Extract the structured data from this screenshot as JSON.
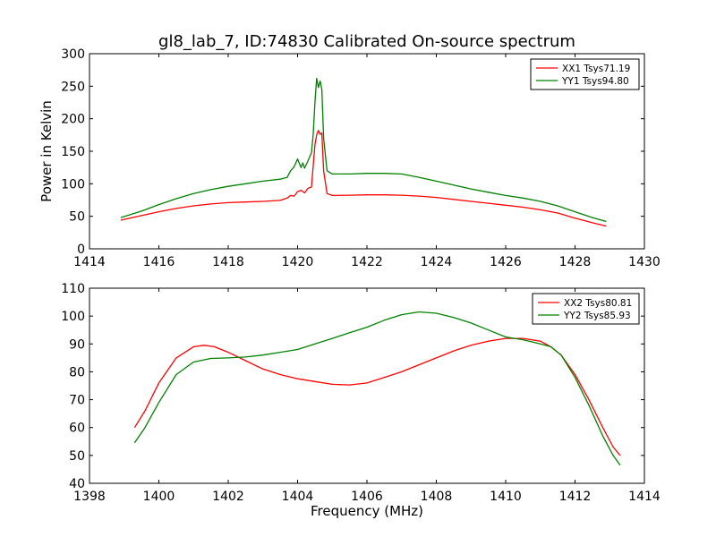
{
  "figure": {
    "title": "gl8_lab_7, ID:74830 Calibrated On-source spectrum"
  },
  "chart_data": [
    {
      "type": "line",
      "title": "gl8_lab_7, ID:74830 Calibrated On-source spectrum",
      "xlabel": "",
      "ylabel": "Power in Kelvin",
      "xlim": [
        1414,
        1430
      ],
      "ylim": [
        0,
        300
      ],
      "xticks": [
        1414,
        1416,
        1418,
        1420,
        1422,
        1424,
        1426,
        1428,
        1430
      ],
      "yticks": [
        0,
        50,
        100,
        150,
        200,
        250,
        300
      ],
      "grid": false,
      "legend_position": "top-right",
      "series": [
        {
          "name": "XX1 Tsys71.19",
          "color": "#ff0000",
          "points": [
            [
              1414.9,
              44
            ],
            [
              1415.5,
              51
            ],
            [
              1416,
              57
            ],
            [
              1416.5,
              62
            ],
            [
              1417,
              66
            ],
            [
              1417.5,
              69
            ],
            [
              1418,
              71
            ],
            [
              1418.5,
              72
            ],
            [
              1419,
              73
            ],
            [
              1419.5,
              74.5
            ],
            [
              1419.7,
              78
            ],
            [
              1419.8,
              82
            ],
            [
              1419.9,
              81
            ],
            [
              1420,
              88
            ],
            [
              1420.1,
              90
            ],
            [
              1420.2,
              86
            ],
            [
              1420.3,
              93
            ],
            [
              1420.4,
              95
            ],
            [
              1420.5,
              160
            ],
            [
              1420.55,
              175
            ],
            [
              1420.6,
              182
            ],
            [
              1420.65,
              176
            ],
            [
              1420.7,
              178
            ],
            [
              1420.75,
              120
            ],
            [
              1420.85,
              85
            ],
            [
              1421,
              82
            ],
            [
              1421.5,
              82.5
            ],
            [
              1422,
              83
            ],
            [
              1422.5,
              83
            ],
            [
              1423,
              82.5
            ],
            [
              1423.5,
              81
            ],
            [
              1424,
              79
            ],
            [
              1424.5,
              76
            ],
            [
              1425,
              73
            ],
            [
              1425.5,
              70
            ],
            [
              1426,
              67
            ],
            [
              1426.5,
              64
            ],
            [
              1427,
              60
            ],
            [
              1427.5,
              55
            ],
            [
              1428,
              47
            ],
            [
              1428.5,
              40
            ],
            [
              1428.9,
              35
            ]
          ]
        },
        {
          "name": "YY1 Tsys94.80",
          "color": "#008000",
          "points": [
            [
              1414.9,
              48
            ],
            [
              1415.5,
              58
            ],
            [
              1416,
              68
            ],
            [
              1416.5,
              77
            ],
            [
              1417,
              85
            ],
            [
              1417.5,
              91
            ],
            [
              1418,
              96
            ],
            [
              1418.5,
              100
            ],
            [
              1419,
              104
            ],
            [
              1419.5,
              107
            ],
            [
              1419.7,
              110
            ],
            [
              1419.8,
              120
            ],
            [
              1419.9,
              126
            ],
            [
              1420,
              138
            ],
            [
              1420.1,
              125
            ],
            [
              1420.15,
              132
            ],
            [
              1420.2,
              124
            ],
            [
              1420.3,
              135
            ],
            [
              1420.4,
              148
            ],
            [
              1420.45,
              175
            ],
            [
              1420.5,
              225
            ],
            [
              1420.55,
              262
            ],
            [
              1420.6,
              248
            ],
            [
              1420.65,
              258
            ],
            [
              1420.7,
              245
            ],
            [
              1420.75,
              170
            ],
            [
              1420.85,
              120
            ],
            [
              1421,
              115
            ],
            [
              1421.5,
              115
            ],
            [
              1422,
              116
            ],
            [
              1422.5,
              116
            ],
            [
              1423,
              115
            ],
            [
              1423.5,
              110
            ],
            [
              1424,
              104
            ],
            [
              1424.5,
              98
            ],
            [
              1425,
              92
            ],
            [
              1425.5,
              87
            ],
            [
              1426,
              82
            ],
            [
              1426.5,
              78
            ],
            [
              1427,
              73
            ],
            [
              1427.5,
              66
            ],
            [
              1428,
              57
            ],
            [
              1428.5,
              48
            ],
            [
              1428.9,
              42
            ]
          ]
        }
      ]
    },
    {
      "type": "line",
      "title": "",
      "xlabel": "Frequency (MHz)",
      "ylabel": "",
      "xlim": [
        1398,
        1414
      ],
      "ylim": [
        40,
        110
      ],
      "xticks": [
        1398,
        1400,
        1402,
        1404,
        1406,
        1408,
        1410,
        1412,
        1414
      ],
      "yticks": [
        40,
        50,
        60,
        70,
        80,
        90,
        100,
        110
      ],
      "grid": false,
      "legend_position": "top-right",
      "series": [
        {
          "name": "XX2 Tsys80.81",
          "color": "#ff0000",
          "points": [
            [
              1399.3,
              60
            ],
            [
              1399.6,
              66
            ],
            [
              1400,
              76
            ],
            [
              1400.5,
              85
            ],
            [
              1401,
              89
            ],
            [
              1401.3,
              89.5
            ],
            [
              1401.6,
              89
            ],
            [
              1402,
              87
            ],
            [
              1402.5,
              84
            ],
            [
              1403,
              81
            ],
            [
              1403.5,
              79
            ],
            [
              1404,
              77.5
            ],
            [
              1404.5,
              76.5
            ],
            [
              1405,
              75.5
            ],
            [
              1405.5,
              75.3
            ],
            [
              1406,
              76
            ],
            [
              1406.5,
              78
            ],
            [
              1407,
              80
            ],
            [
              1407.5,
              82.5
            ],
            [
              1408,
              85
            ],
            [
              1408.5,
              87.5
            ],
            [
              1409,
              89.5
            ],
            [
              1409.5,
              91
            ],
            [
              1410,
              92
            ],
            [
              1410.5,
              92
            ],
            [
              1411,
              91
            ],
            [
              1411.3,
              89
            ],
            [
              1411.6,
              86
            ],
            [
              1412,
              79
            ],
            [
              1412.4,
              70
            ],
            [
              1412.8,
              60
            ],
            [
              1413.1,
              53
            ],
            [
              1413.3,
              50
            ]
          ]
        },
        {
          "name": "YY2 Tsys85.93",
          "color": "#008000",
          "points": [
            [
              1399.3,
              54.5
            ],
            [
              1399.6,
              60
            ],
            [
              1400,
              69
            ],
            [
              1400.5,
              79
            ],
            [
              1401,
              83.5
            ],
            [
              1401.5,
              84.8
            ],
            [
              1402,
              85
            ],
            [
              1402.5,
              85.3
            ],
            [
              1403,
              86
            ],
            [
              1403.5,
              87
            ],
            [
              1404,
              88
            ],
            [
              1404.5,
              90
            ],
            [
              1405,
              92
            ],
            [
              1405.5,
              94
            ],
            [
              1406,
              96
            ],
            [
              1406.5,
              98.5
            ],
            [
              1407,
              100.5
            ],
            [
              1407.5,
              101.5
            ],
            [
              1408,
              101
            ],
            [
              1408.5,
              99.5
            ],
            [
              1409,
              97.5
            ],
            [
              1409.5,
              95
            ],
            [
              1410,
              92.5
            ],
            [
              1410.5,
              91.5
            ],
            [
              1411,
              90
            ],
            [
              1411.3,
              89
            ],
            [
              1411.6,
              86
            ],
            [
              1412,
              78
            ],
            [
              1412.4,
              68
            ],
            [
              1412.8,
              57
            ],
            [
              1413.1,
              50
            ],
            [
              1413.3,
              46.5
            ]
          ]
        }
      ]
    }
  ]
}
